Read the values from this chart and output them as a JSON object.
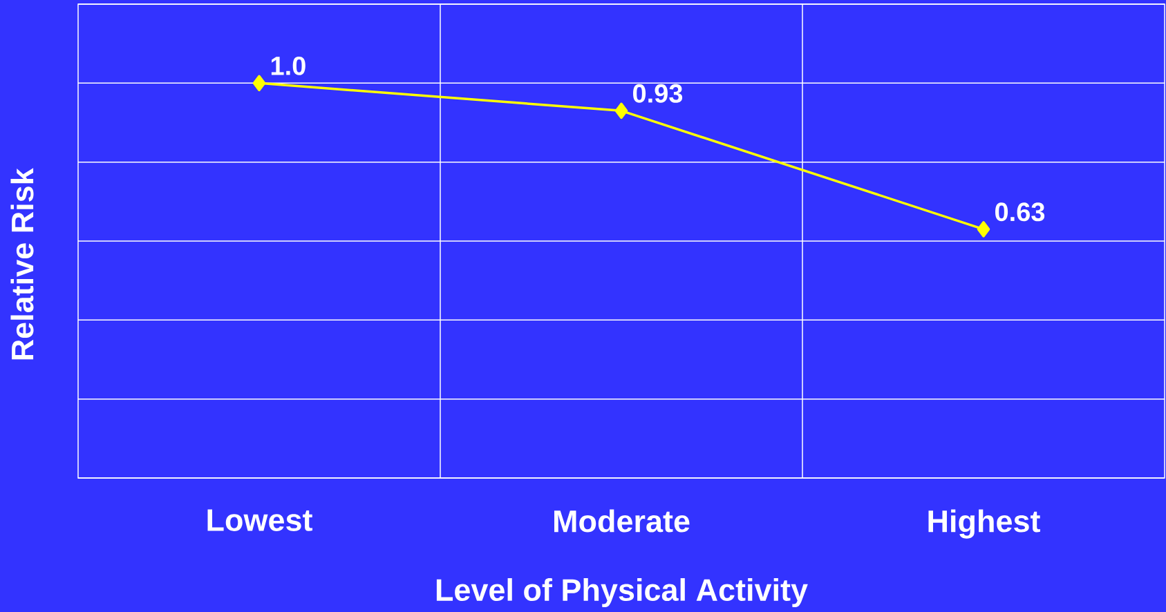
{
  "chart_data": {
    "type": "line",
    "xlabel": "Level of Physical Activity",
    "ylabel": "Relative Risk",
    "categories": [
      "Lowest",
      "Moderate",
      "Highest"
    ],
    "series": [
      {
        "color": "#ffff00",
        "values": [
          1.0,
          0.93,
          0.63
        ],
        "value_labels": [
          "1.0",
          "0.93",
          "0.63"
        ]
      }
    ],
    "relative": false,
    "ylim": [
      0,
      1.2
    ],
    "yticks": [
      {
        "value": 0,
        "label": null
      },
      {
        "value": 0.2,
        "label": null
      },
      {
        "value": 0.4,
        "label": null
      },
      {
        "value": 0.6,
        "label": null
      },
      {
        "value": 0.8,
        "label": null
      },
      {
        "value": 1.0,
        "label": null
      },
      {
        "value": 1.2,
        "label": null
      }
    ],
    "tick_labels": "x",
    "grid": true,
    "marker": "diamond",
    "line_style": "solid"
  }
}
